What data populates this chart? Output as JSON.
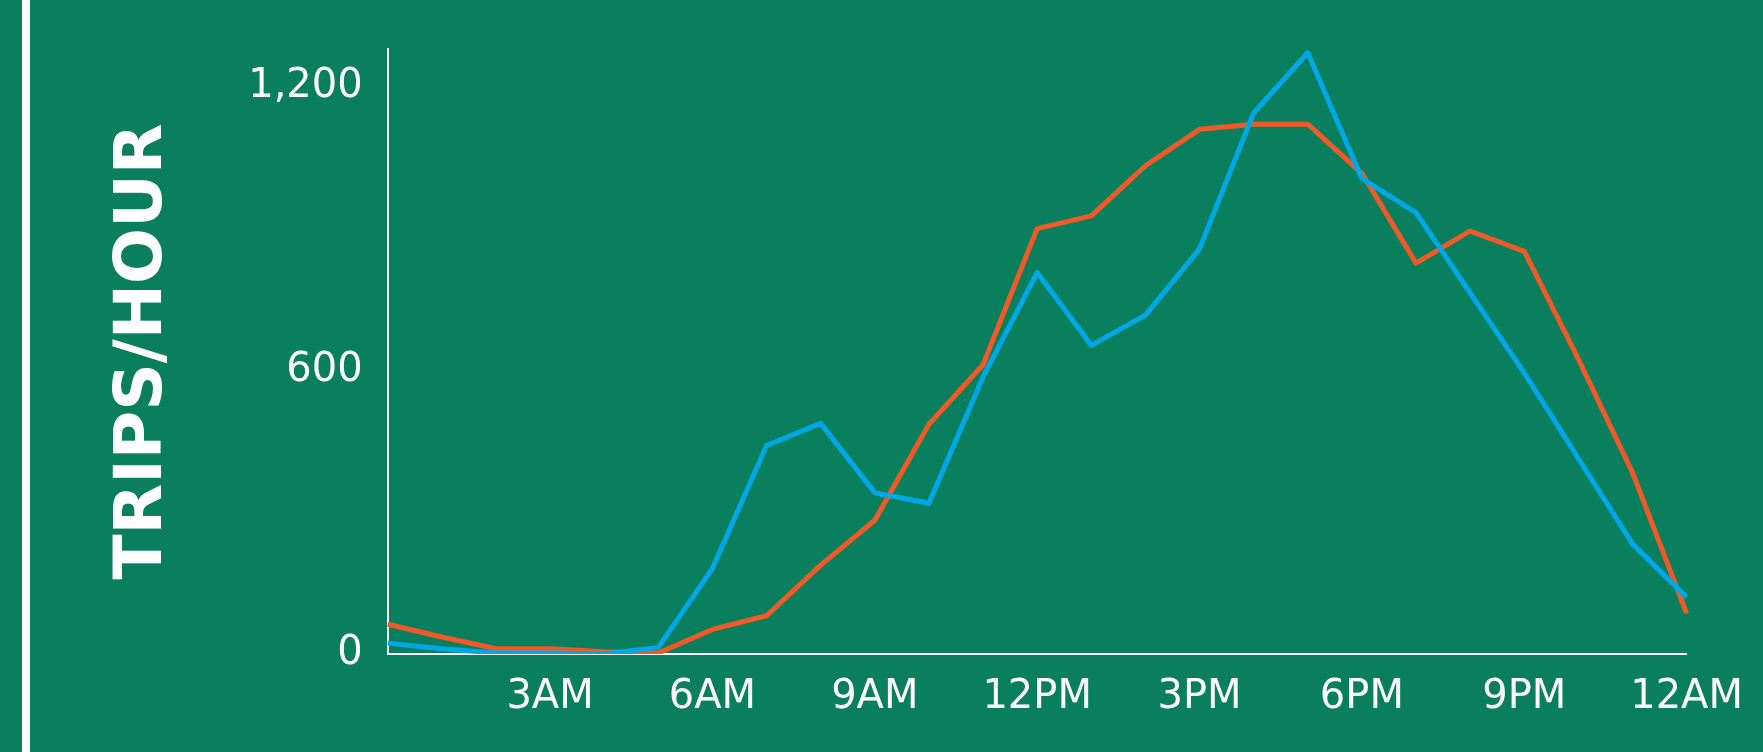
{
  "chart_data": {
    "type": "line",
    "ylabel": "TRIPS/HOUR",
    "ylim": [
      0,
      1280
    ],
    "yticks": [
      0,
      {
        "value": 600,
        "label": "600"
      },
      {
        "value": 1200,
        "label": "1,200"
      }
    ],
    "categories": [
      null,
      null,
      null,
      "3AM",
      null,
      null,
      "6AM",
      null,
      null,
      "9AM",
      null,
      null,
      "12PM",
      null,
      null,
      "3PM",
      null,
      null,
      "6PM",
      null,
      null,
      "9PM",
      null,
      null,
      "12AM"
    ],
    "grid": false,
    "legend": false,
    "marker": "none",
    "line_style": "solid",
    "series": [
      {
        "color": "#00a8e8",
        "values": [
          23,
          11,
          2,
          2,
          0,
          14,
          181,
          441,
          488,
          341,
          319,
          586,
          807,
          653,
          717,
          857,
          1145,
          1272,
          1006,
          934,
          764,
          595,
          414,
          233,
          120
        ]
      },
      {
        "color": "#f05a28",
        "values": [
          63,
          36,
          11,
          11,
          5,
          2,
          52,
          81,
          188,
          283,
          486,
          612,
          900,
          927,
          1033,
          1110,
          1121,
          1121,
          1017,
          827,
          895,
          852,
          624,
          384,
          86
        ]
      }
    ]
  }
}
